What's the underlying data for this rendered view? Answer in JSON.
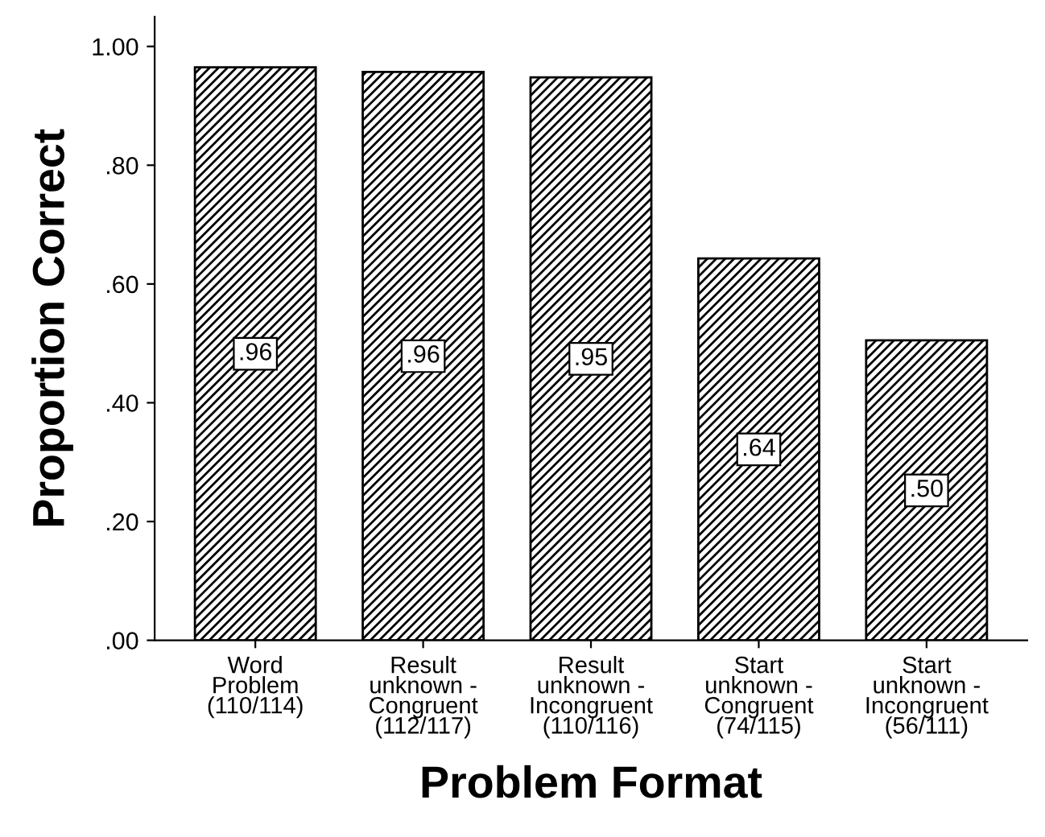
{
  "chart_data": {
    "type": "bar",
    "xlabel": "Problem Format",
    "ylabel": "Proportion Correct",
    "categories": [
      "Word\nProblem\n(110/114)",
      "Result\nunknown -\nCongruent\n(112/117)",
      "Result\nunknown -\nIncongruent\n(110/116)",
      "Start\nunknown -\nCongruent\n(74/115)",
      "Start\nunknown -\nIncongruent\n(56/111)"
    ],
    "values": [
      0.965,
      0.957,
      0.948,
      0.643,
      0.505
    ],
    "value_labels": [
      ".96",
      ".96",
      ".95",
      ".64",
      ".50"
    ],
    "color": "#000000",
    "ylim": [
      0,
      1.05
    ],
    "yticks": [
      {
        "value": 0,
        "label": ".00"
      },
      {
        "value": 0.2,
        "label": ".20"
      },
      {
        "value": 0.4,
        "label": ".40"
      },
      {
        "value": 0.6,
        "label": ".60"
      },
      {
        "value": 0.8,
        "label": ".80"
      },
      {
        "value": 1.0,
        "label": "1.00"
      }
    ],
    "grid": false,
    "legend": false
  }
}
